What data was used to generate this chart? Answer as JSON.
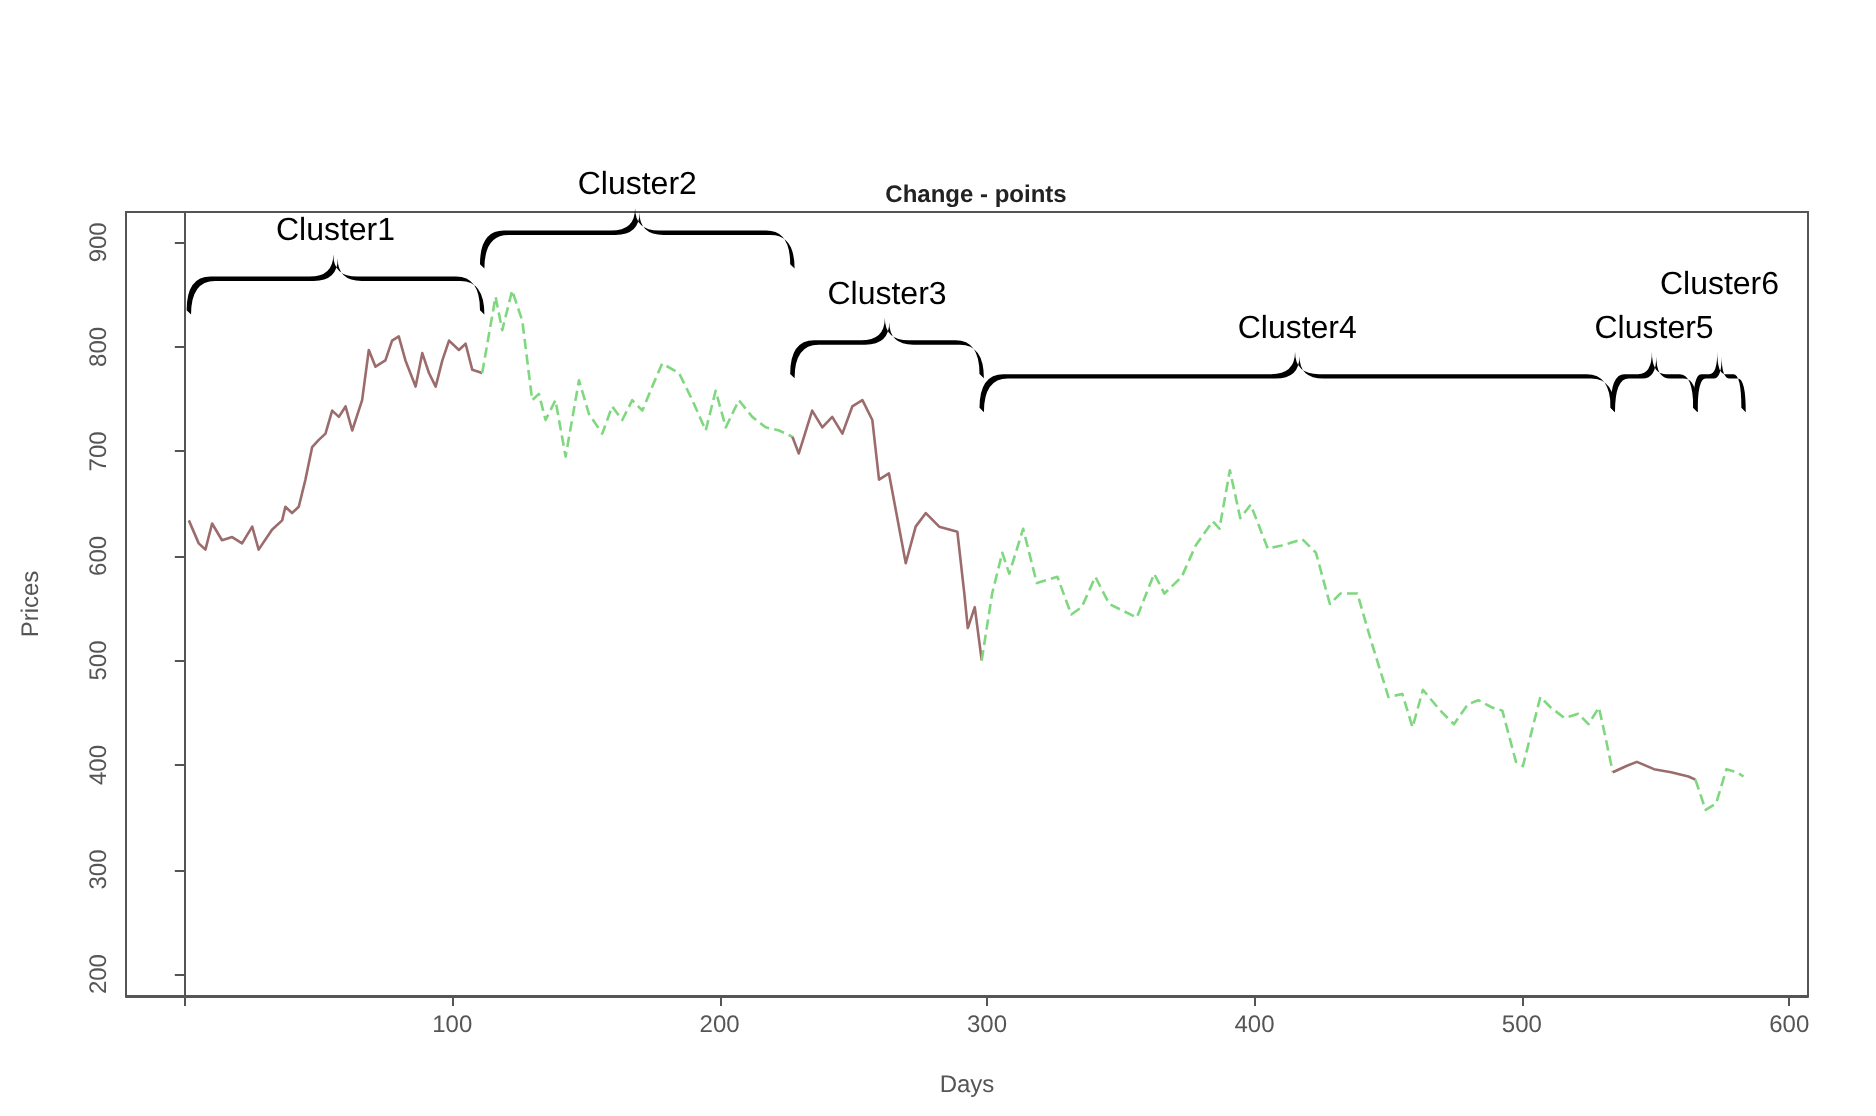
{
  "chart_data": {
    "type": "line",
    "title": "Change - points",
    "xlabel": "Days",
    "ylabel": "Prices",
    "xlim": [
      -22,
      607
    ],
    "ylim": [
      179,
      929
    ],
    "xticks": [
      {
        "value": 0,
        "label": null
      },
      100,
      200,
      300,
      400,
      500,
      600
    ],
    "yticks": [
      200,
      300,
      400,
      500,
      600,
      700,
      800,
      900
    ],
    "annotations": [
      "Cluster1",
      "Cluster2",
      "Cluster3",
      "Cluster4",
      "Cluster5",
      "Cluster6"
    ],
    "series": [
      {
        "color": "#9c6b6b",
        "line_style": "solid",
        "x": [
          1.5,
          5.2,
          7.7,
          10.2,
          13.9,
          17.7,
          21.4,
          25.2,
          27.6,
          32.6,
          36.4,
          37.6,
          40.1,
          42.6,
          45.1,
          47.6,
          50.1,
          52.6,
          55.1,
          57.6,
          60.1,
          62.6,
          66.3,
          68.8,
          71.3,
          75,
          77.5,
          80,
          82.5,
          86.3,
          88.8,
          91.3,
          93.8,
          96.3,
          98.8,
          102.5,
          105,
          107.5,
          111.2
        ],
        "values": [
          634,
          612,
          606,
          631,
          615,
          618,
          612,
          628,
          606,
          625,
          634,
          647,
          641,
          647,
          673,
          704,
          711,
          717,
          739,
          733,
          743,
          720,
          749,
          797,
          781,
          787,
          806,
          810,
          787,
          762,
          794,
          775,
          762,
          787,
          806,
          797,
          803,
          778,
          775
        ]
      },
      {
        "color": "#7fd87f",
        "line_style": "dashed",
        "x": [
          111.2,
          116.2,
          118.7,
          122.4,
          126.2,
          129.9,
          132.4,
          134.9,
          138.6,
          142.4,
          147.4,
          151.1,
          156.1,
          159.8,
          163.6,
          167.3,
          171.1,
          174.8,
          178.5,
          184.8,
          189.8,
          194.8,
          198.5,
          202.3,
          207.2,
          212.2,
          217.2,
          222.2,
          227.2
        ],
        "values": [
          775,
          848,
          816,
          854,
          825,
          749,
          755,
          730,
          749,
          695,
          768,
          736,
          717,
          743,
          730,
          749,
          739,
          762,
          784,
          775,
          749,
          720,
          758,
          723,
          749,
          733,
          723,
          720,
          714
        ]
      },
      {
        "color": "#9c6b6b",
        "line_style": "solid",
        "x": [
          227.2,
          229.6,
          234.6,
          238.4,
          242.1,
          245.9,
          249.6,
          253.4,
          257.1,
          259.6,
          263.3,
          269.6,
          273.3,
          277.1,
          282.1,
          288.9,
          291.5,
          292.8,
          295.4,
          298
        ],
        "values": [
          714,
          698,
          739,
          723,
          733,
          717,
          743,
          749,
          730,
          673,
          679,
          593,
          628,
          641,
          628,
          623,
          564,
          531,
          551,
          500
        ]
      },
      {
        "color": "#7fd87f",
        "line_style": "dashed",
        "x": [
          298,
          301.9,
          305.7,
          308.3,
          313.5,
          318.6,
          326.3,
          331.5,
          335.4,
          340.5,
          345.7,
          356,
          362.5,
          366.3,
          372.8,
          378,
          384.4,
          386.9,
          390.8,
          394.7,
          398.6,
          405,
          410.2,
          417.9,
          423,
          428.2,
          432.1,
          438.5,
          443.7,
          450.1,
          455.3,
          459.1,
          463,
          469.5,
          474.6,
          479.8,
          483.7,
          488.9,
          492.7,
          497.8,
          500.4,
          506.9,
          510.8,
          515.9,
          521.1,
          524.9,
          528.8,
          531.3,
          534
        ],
        "values": [
          500,
          564,
          603,
          583,
          626,
          574,
          580,
          544,
          551,
          580,
          554,
          541,
          583,
          564,
          580,
          610,
          633,
          626,
          682,
          636,
          649,
          607,
          610,
          616,
          603,
          554,
          564,
          564,
          518,
          465,
          468,
          436,
          472,
          452,
          439,
          458,
          462,
          455,
          452,
          403,
          399,
          465,
          455,
          445,
          449,
          439,
          455,
          426,
          393
        ]
      },
      {
        "color": "#9c6b6b",
        "line_style": "solid",
        "x": [
          534,
          539.1,
          543,
          549.4,
          555.8,
          562.3,
          564.9
        ],
        "values": [
          393,
          399,
          403,
          396,
          393,
          389,
          386
        ]
      },
      {
        "color": "#7fd87f",
        "line_style": "dashed",
        "x": [
          564.9,
          568.7,
          572.6,
          576.5,
          580.4,
          582.9
        ],
        "values": [
          386,
          357,
          363,
          396,
          393,
          389
        ]
      }
    ]
  }
}
